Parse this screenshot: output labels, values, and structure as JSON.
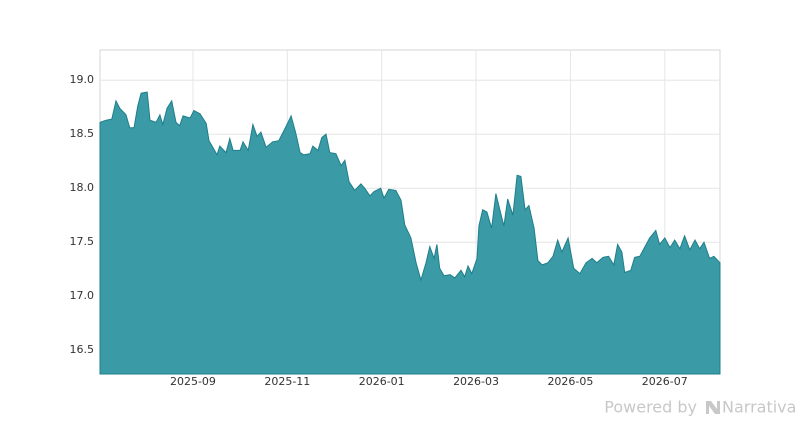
{
  "chart_data": {
    "type": "area",
    "x": [
      7.03,
      7.16,
      7.28,
      7.37,
      7.45,
      7.58,
      7.66,
      7.75,
      7.83,
      7.9,
      8.03,
      8.09,
      8.22,
      8.3,
      8.36,
      8.45,
      8.55,
      8.64,
      8.72,
      8.79,
      8.94,
      9.02,
      9.15,
      9.28,
      9.34,
      9.42,
      9.51,
      9.57,
      9.7,
      9.78,
      9.85,
      10.0,
      10.06,
      10.17,
      10.27,
      10.36,
      10.44,
      10.55,
      10.69,
      10.82,
      10.97,
      11.08,
      11.18,
      11.27,
      11.35,
      11.48,
      11.54,
      11.65,
      11.73,
      11.82,
      11.9,
      12.03,
      12.14,
      12.22,
      12.31,
      12.43,
      12.56,
      12.64,
      12.75,
      12.84,
      12.98,
      13.05,
      13.15,
      13.3,
      13.41,
      13.49,
      13.62,
      13.73,
      13.83,
      13.94,
      14.02,
      14.11,
      14.17,
      14.23,
      14.32,
      14.45,
      14.55,
      14.68,
      14.76,
      14.83,
      14.91,
      15.02,
      15.06,
      15.14,
      15.23,
      15.33,
      15.42,
      15.5,
      15.59,
      15.67,
      15.78,
      15.87,
      15.95,
      16.04,
      16.12,
      16.23,
      16.31,
      16.4,
      16.52,
      16.63,
      16.73,
      16.82,
      16.95,
      17.07,
      17.2,
      17.33,
      17.46,
      17.56,
      17.69,
      17.81,
      17.92,
      18.0,
      18.09,
      18.15,
      18.28,
      18.36,
      18.47,
      18.58,
      18.68,
      18.81,
      18.89,
      19.0,
      19.11,
      19.21,
      19.32,
      19.42,
      19.53,
      19.64,
      19.74,
      19.83,
      19.95,
      20.04,
      20.17
    ],
    "values": [
      18.61,
      18.63,
      18.64,
      18.81,
      18.74,
      18.68,
      18.56,
      18.56,
      18.76,
      18.88,
      18.89,
      18.63,
      18.61,
      18.68,
      18.59,
      18.74,
      18.81,
      18.61,
      18.58,
      18.67,
      18.65,
      18.72,
      18.69,
      18.6,
      18.44,
      18.38,
      18.31,
      18.39,
      18.33,
      18.46,
      18.35,
      18.35,
      18.43,
      18.35,
      18.59,
      18.48,
      18.52,
      18.38,
      18.43,
      18.44,
      18.57,
      18.67,
      18.51,
      18.33,
      18.31,
      18.32,
      18.39,
      18.35,
      18.47,
      18.5,
      18.33,
      18.32,
      18.21,
      18.26,
      18.06,
      17.98,
      18.04,
      18.0,
      17.93,
      17.97,
      18.0,
      17.91,
      17.99,
      17.98,
      17.89,
      17.66,
      17.54,
      17.31,
      17.15,
      17.31,
      17.46,
      17.35,
      17.48,
      17.26,
      17.19,
      17.2,
      17.17,
      17.24,
      17.18,
      17.28,
      17.21,
      17.35,
      17.65,
      17.8,
      17.78,
      17.63,
      17.95,
      17.81,
      17.65,
      17.9,
      17.75,
      18.12,
      18.11,
      17.8,
      17.84,
      17.63,
      17.33,
      17.29,
      17.31,
      17.37,
      17.52,
      17.41,
      17.54,
      17.26,
      17.21,
      17.31,
      17.35,
      17.31,
      17.36,
      17.37,
      17.29,
      17.48,
      17.41,
      17.22,
      17.24,
      17.36,
      17.37,
      17.46,
      17.54,
      17.61,
      17.48,
      17.54,
      17.45,
      17.52,
      17.44,
      17.56,
      17.43,
      17.52,
      17.44,
      17.5,
      17.35,
      17.37,
      17.31
    ],
    "color": "#3a9aa6",
    "line_color": "#1e7f8a",
    "xlim": [
      7.03,
      20.17
    ],
    "xticks": [
      {
        "value": 9,
        "label": "2025-09"
      },
      {
        "value": 11,
        "label": "2025-11"
      },
      {
        "value": 13,
        "label": "2026-01"
      },
      {
        "value": 15,
        "label": "2026-03"
      },
      {
        "value": 17,
        "label": "2026-05"
      },
      {
        "value": 19,
        "label": "2026-07"
      }
    ],
    "ylim": [
      16.28,
      19.28
    ],
    "yticks": [
      {
        "value": 16.5,
        "label": "16.5"
      },
      {
        "value": 17,
        "label": "17.0"
      },
      {
        "value": 17.5,
        "label": "17.5"
      },
      {
        "value": 18,
        "label": "18.0"
      },
      {
        "value": 18.5,
        "label": "18.5"
      },
      {
        "value": 19,
        "label": "19.0"
      }
    ],
    "grid": true
  },
  "footer": {
    "prefix": "Powered by",
    "brand": "Narrativa"
  }
}
